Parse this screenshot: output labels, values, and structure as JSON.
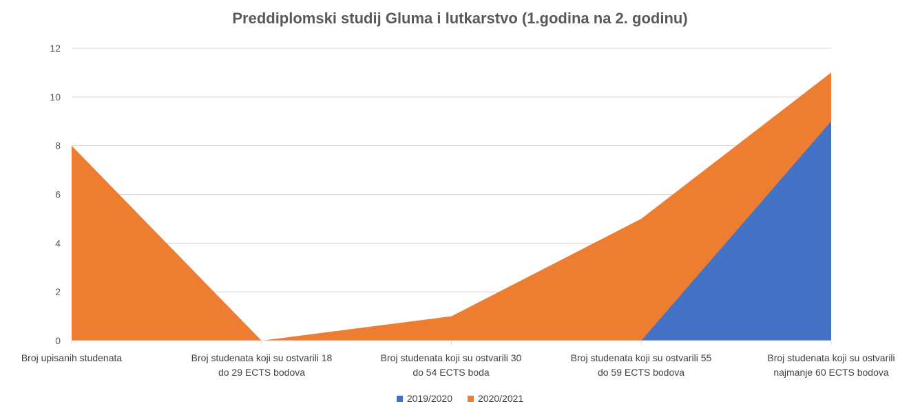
{
  "chart_data": {
    "type": "area",
    "title": "Preddiplomski studij Gluma i lutkarstvo (1.godina na 2. godinu)",
    "xlabel": "",
    "ylabel": "",
    "ylim": [
      0,
      12
    ],
    "yticks": [
      0,
      2,
      4,
      6,
      8,
      10,
      12
    ],
    "grid": true,
    "legend_position": "bottom",
    "categories": [
      [
        "Broj upisanih studenata"
      ],
      [
        "Broj studenata koji su ostvarili 18",
        "do 29 ECTS bodova"
      ],
      [
        "Broj studenata koji su ostvarili 30",
        "do 54 ECTS boda"
      ],
      [
        "Broj studenata koji su ostvarili 55",
        "do 59 ECTS bodova"
      ],
      [
        "Broj studenata koji su ostvarili",
        "najmanje 60 ECTS bodova"
      ]
    ],
    "series": [
      {
        "name": "2019/2020",
        "color": "#4472C4",
        "values": [
          0,
          0,
          0,
          0,
          9
        ]
      },
      {
        "name": "2020/2021",
        "color": "#ED7D31",
        "values": [
          8,
          0,
          1,
          5,
          11
        ]
      }
    ]
  }
}
